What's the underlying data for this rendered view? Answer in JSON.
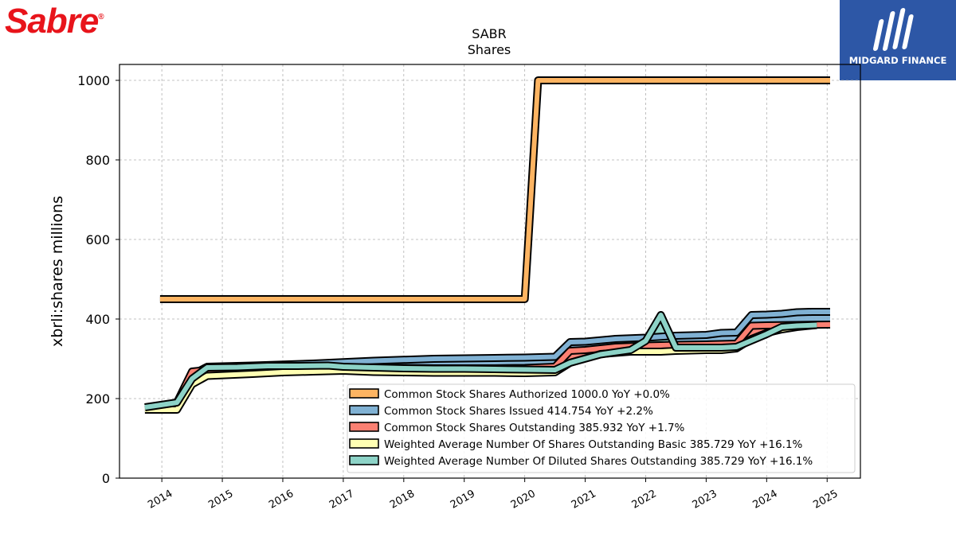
{
  "logos": {
    "left": "Sabre",
    "right": "MIDGARD FINANCE"
  },
  "chart_data": {
    "type": "area",
    "title": "SABR",
    "subtitle": "Shares",
    "ylabel": "xbrli:shares millions",
    "xlabel": "",
    "ylim": [
      0,
      1040
    ],
    "xlim": [
      2013.3,
      2025.55
    ],
    "yticks": [
      0,
      200,
      400,
      600,
      800,
      1000
    ],
    "xticks": [
      2014,
      2015,
      2016,
      2017,
      2018,
      2019,
      2020,
      2021,
      2022,
      2023,
      2024,
      2025
    ],
    "grid": true,
    "legend_position": "lower-right",
    "series": [
      {
        "name": "Common Stock Shares Authorized  1000.0 YoY +0.0%",
        "color": "#fdb462",
        "points": [
          [
            2013.97,
            450
          ],
          [
            2020.0,
            450
          ],
          [
            2020.22,
            1000
          ],
          [
            2025.05,
            1000
          ]
        ]
      },
      {
        "name": "Common Stock Shares Issued  414.754 YoY +2.2%",
        "color": "#80b1d3",
        "points": [
          [
            2014.25,
            190
          ],
          [
            2014.5,
            260
          ],
          [
            2014.75,
            280
          ],
          [
            2015.5,
            283
          ],
          [
            2016.5,
            288
          ],
          [
            2017.5,
            295
          ],
          [
            2018.5,
            300
          ],
          [
            2019.5,
            302
          ],
          [
            2020.0,
            303
          ],
          [
            2020.5,
            305
          ],
          [
            2020.75,
            342
          ],
          [
            2021.0,
            343
          ],
          [
            2021.5,
            350
          ],
          [
            2022.0,
            353
          ],
          [
            2022.5,
            358
          ],
          [
            2023.0,
            360
          ],
          [
            2023.25,
            365
          ],
          [
            2023.5,
            366
          ],
          [
            2023.75,
            410
          ],
          [
            2024.0,
            411
          ],
          [
            2024.25,
            413
          ],
          [
            2024.5,
            417
          ],
          [
            2024.75,
            418
          ],
          [
            2025.05,
            418
          ]
        ]
      },
      {
        "name": "Common Stock Shares Outstanding  385.932 YoY +1.7%",
        "color": "#fb8072",
        "points": [
          [
            2014.25,
            190
          ],
          [
            2014.5,
            268
          ],
          [
            2014.75,
            272
          ],
          [
            2015.5,
            276
          ],
          [
            2016.5,
            280
          ],
          [
            2017.5,
            278
          ],
          [
            2018.5,
            276
          ],
          [
            2019.5,
            276
          ],
          [
            2020.0,
            277
          ],
          [
            2020.5,
            280
          ],
          [
            2020.75,
            320
          ],
          [
            2021.0,
            322
          ],
          [
            2021.5,
            330
          ],
          [
            2022.0,
            333
          ],
          [
            2022.5,
            335
          ],
          [
            2023.0,
            336
          ],
          [
            2023.5,
            338
          ],
          [
            2023.75,
            383
          ],
          [
            2024.0,
            384
          ],
          [
            2024.5,
            385
          ],
          [
            2025.05,
            386
          ]
        ]
      },
      {
        "name": "Weighted Average Number Of Shares Outstanding Basic  385.729 YoY +16.1%",
        "color": "#ffffb3",
        "points": [
          [
            2013.72,
            172
          ],
          [
            2014.25,
            172
          ],
          [
            2014.5,
            236
          ],
          [
            2014.75,
            257
          ],
          [
            2015.5,
            262
          ],
          [
            2016.0,
            266
          ],
          [
            2016.5,
            268
          ],
          [
            2017.0,
            270
          ],
          [
            2017.5,
            267
          ],
          [
            2018.0,
            266
          ],
          [
            2018.5,
            265
          ],
          [
            2019.0,
            265
          ],
          [
            2019.5,
            265
          ],
          [
            2020.0,
            264
          ],
          [
            2020.5,
            266
          ],
          [
            2020.75,
            290
          ],
          [
            2021.25,
            312
          ],
          [
            2021.75,
            318
          ],
          [
            2022.0,
            318
          ],
          [
            2022.25,
            318
          ],
          [
            2022.5,
            320
          ],
          [
            2023.0,
            322
          ],
          [
            2023.25,
            322
          ],
          [
            2023.5,
            326
          ],
          [
            2023.75,
            350
          ],
          [
            2024.0,
            365
          ],
          [
            2024.25,
            374
          ],
          [
            2024.5,
            380
          ],
          [
            2024.83,
            385
          ]
        ]
      },
      {
        "name": "Weighted Average Number Of Diluted Shares Outstanding  385.729 YoY +16.1%",
        "color": "#8dd3c7",
        "points": [
          [
            2013.72,
            178
          ],
          [
            2014.25,
            190
          ],
          [
            2014.5,
            250
          ],
          [
            2014.75,
            278
          ],
          [
            2015.25,
            279
          ],
          [
            2015.75,
            282
          ],
          [
            2016.25,
            282
          ],
          [
            2016.75,
            283
          ],
          [
            2017.0,
            280
          ],
          [
            2017.5,
            278
          ],
          [
            2018.0,
            276
          ],
          [
            2018.5,
            275
          ],
          [
            2019.0,
            275
          ],
          [
            2019.5,
            274
          ],
          [
            2020.0,
            273
          ],
          [
            2020.5,
            272
          ],
          [
            2020.75,
            290
          ],
          [
            2021.25,
            311
          ],
          [
            2021.75,
            322
          ],
          [
            2022.0,
            345
          ],
          [
            2022.25,
            410
          ],
          [
            2022.5,
            328
          ],
          [
            2023.0,
            328
          ],
          [
            2023.25,
            328
          ],
          [
            2023.5,
            330
          ],
          [
            2023.75,
            346
          ],
          [
            2024.0,
            362
          ],
          [
            2024.25,
            380
          ],
          [
            2024.5,
            383
          ],
          [
            2024.83,
            385
          ]
        ]
      }
    ]
  }
}
